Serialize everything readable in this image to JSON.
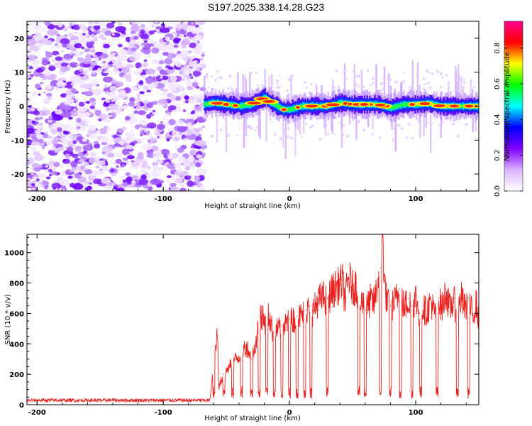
{
  "figure": {
    "title": "S197.2025.338.14.28.G23"
  },
  "chart_data": [
    {
      "type": "heatmap",
      "title": "",
      "xlabel": "Height of straight line (km)",
      "ylabel": "Frequency (Hz)",
      "xlim": [
        -208,
        150
      ],
      "ylim": [
        -25,
        25
      ],
      "xticks": [
        -200,
        -100,
        0,
        100
      ],
      "yticks": [
        -20,
        -10,
        0,
        10,
        20
      ],
      "noise_region_x": [
        -208,
        -68
      ],
      "signal_onset_x": -68,
      "ridge": {
        "name": "",
        "x": [
          -68,
          -60,
          -50,
          -40,
          -30,
          -25,
          -20,
          -15,
          -10,
          -5,
          0,
          5,
          10,
          20,
          30,
          35,
          40,
          50,
          60,
          70,
          80,
          90,
          100,
          110,
          120,
          130,
          140,
          150
        ],
        "y": [
          0.5,
          1,
          0.5,
          0,
          0.5,
          1.5,
          2.5,
          1,
          0,
          -1,
          -1,
          -0.5,
          0,
          0,
          0,
          0.5,
          1,
          0.5,
          0.5,
          0.5,
          -0.5,
          0.5,
          0.5,
          0.8,
          0,
          0,
          0,
          0
        ]
      },
      "colorbar": {
        "label": "Normalized spectral amplitude",
        "range": [
          0.0,
          0.95
        ],
        "ticks": [
          "0.0",
          "0.2",
          "0.4",
          "0.6",
          "0.8"
        ],
        "colors": [
          "#ffffff",
          "#d9b3ff",
          "#8000ff",
          "#0000ff",
          "#00ffff",
          "#00ff00",
          "#ffff00",
          "#ff0000",
          "#ff0090"
        ]
      }
    },
    {
      "type": "line",
      "title": "",
      "xlabel": "Height of straight line (km)",
      "ylabel": "SNR (10 * v/v)",
      "xlim": [
        -208,
        150
      ],
      "ylim": [
        0,
        1120
      ],
      "xticks": [
        -200,
        -100,
        0,
        100
      ],
      "yticks": [
        0,
        200,
        400,
        600,
        800,
        1000
      ],
      "color": "#e8231f",
      "series": [
        {
          "name": "",
          "x": [
            -208,
            -190,
            -170,
            -150,
            -130,
            -110,
            -90,
            -70,
            -63,
            -57,
            -56,
            -52,
            -48,
            -44,
            -40,
            -36,
            -33,
            -30,
            -26,
            -23,
            -20,
            -16,
            -13,
            -10,
            -6,
            -3,
            0,
            3,
            6,
            10,
            13,
            16,
            18,
            20,
            23,
            27,
            30,
            33,
            36,
            39,
            42,
            44,
            47,
            50,
            53,
            56,
            58,
            60,
            64,
            67,
            70,
            72,
            74,
            75,
            77,
            80,
            84,
            87,
            91,
            94,
            97,
            100,
            103,
            106,
            109,
            112,
            115,
            118,
            121,
            124,
            127,
            130,
            133,
            136,
            139,
            142,
            145,
            148,
            150
          ],
          "y": [
            20,
            22,
            18,
            20,
            18,
            20,
            19,
            22,
            40,
            500,
            120,
            200,
            250,
            300,
            320,
            380,
            380,
            300,
            450,
            620,
            550,
            600,
            480,
            500,
            520,
            540,
            560,
            570,
            580,
            600,
            620,
            650,
            620,
            650,
            700,
            720,
            700,
            750,
            780,
            800,
            820,
            700,
            850,
            780,
            800,
            650,
            700,
            620,
            700,
            680,
            820,
            900,
            1120,
            850,
            700,
            650,
            700,
            760,
            650,
            700,
            650,
            720,
            600,
            650,
            620,
            700,
            600,
            700,
            650,
            760,
            640,
            700,
            600,
            720,
            640,
            700,
            600,
            680,
            560
          ]
        }
      ],
      "dropouts_x": [
        -60,
        -52,
        -45,
        -38,
        -30,
        -24,
        -18,
        -12,
        -6,
        0,
        6,
        12,
        17,
        30,
        55,
        60,
        72,
        80,
        88,
        97,
        104,
        117,
        133,
        142
      ]
    }
  ]
}
